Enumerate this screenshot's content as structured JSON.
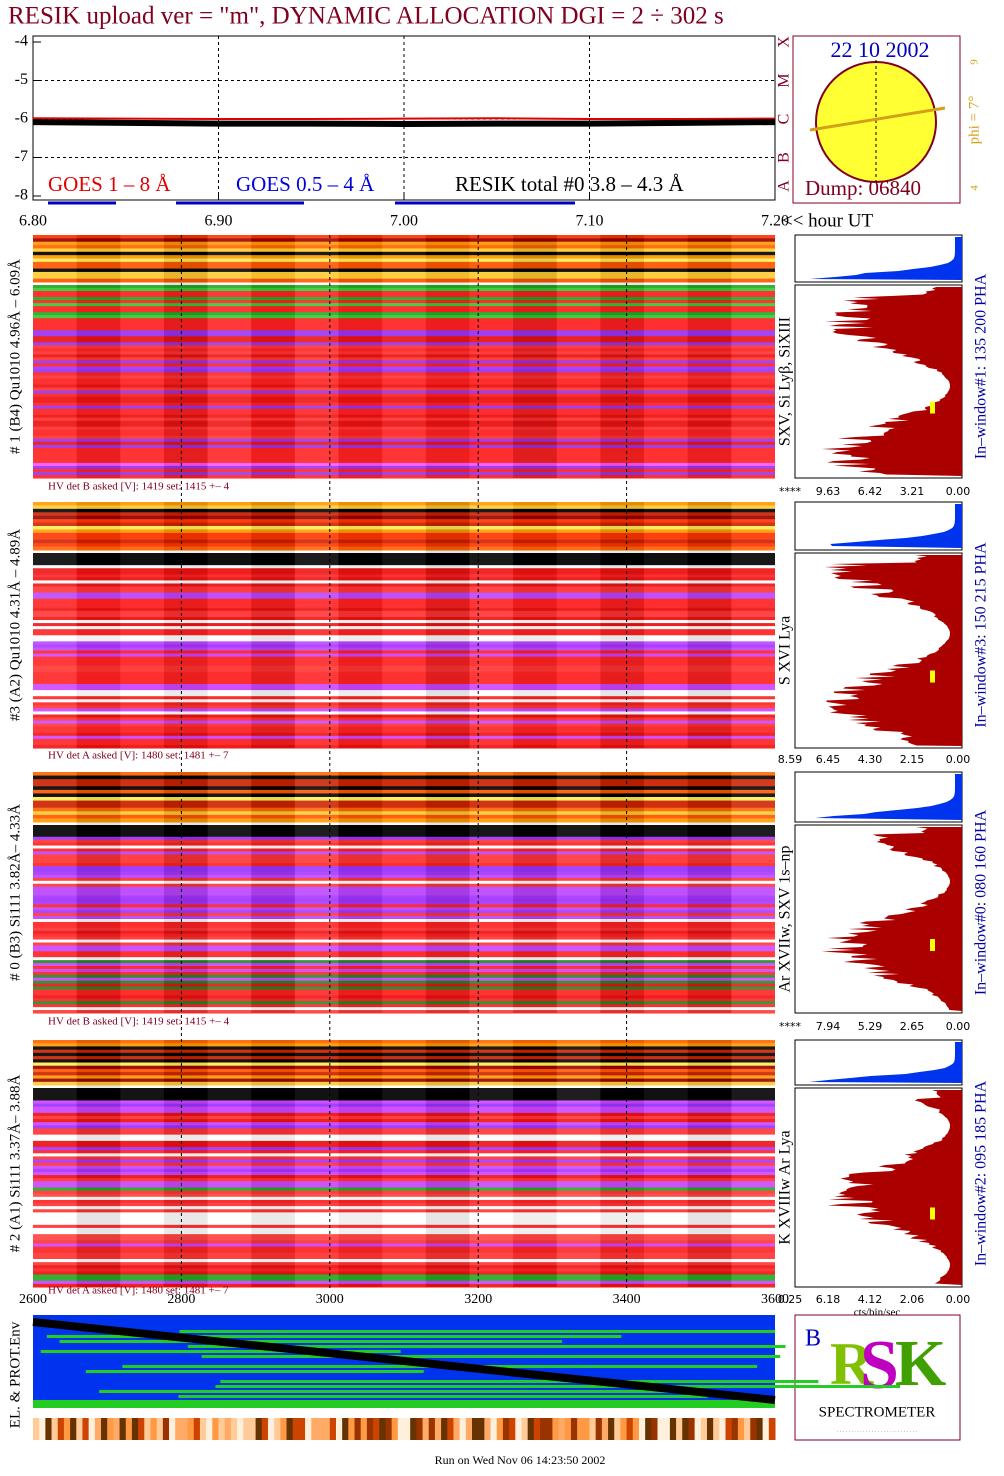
{
  "title": "RESIK upload ver = \"m\", DYNAMIC ALLOCATION  DGI =   2 ÷ 302 s",
  "goes_chart": {
    "type": "line",
    "x": [
      6.8,
      6.85,
      6.9,
      6.95,
      7.0,
      7.05,
      7.1,
      7.15,
      7.2
    ],
    "series": [
      {
        "name": "GOES 1 – 8 Å",
        "color": "#e00000",
        "values": [
          -5.98,
          -5.99,
          -6.0,
          -6.0,
          -5.99,
          -5.98,
          -6.0,
          -6.0,
          -5.99
        ]
      },
      {
        "name": "GOES 0.5 – 4 Å",
        "color": "#0000e0",
        "values": [
          null,
          null,
          null,
          null,
          null,
          null,
          null,
          null,
          null
        ]
      },
      {
        "name": "RESIK total #0  3.8 – 4.3 Å",
        "color": "#000000",
        "values": [
          -6.08,
          -6.1,
          -6.12,
          -6.12,
          -6.13,
          -6.12,
          -6.12,
          -6.1,
          -6.08
        ]
      }
    ],
    "xlim": [
      6.8,
      7.2
    ],
    "xticks": [
      {
        "value": 6.8,
        "label": "6.80"
      },
      {
        "value": 6.9,
        "label": "6.90"
      },
      {
        "value": 7.0,
        "label": "7.00"
      },
      {
        "value": 7.1,
        "label": "7.10"
      },
      {
        "value": 7.2,
        "label": "7.20"
      }
    ],
    "x_label": "<< hour UT",
    "ylim": [
      -8,
      -4
    ],
    "yticks": [
      -4,
      -5,
      -6,
      -7,
      -8
    ],
    "class_labels": [
      "A",
      "B",
      "C",
      "M",
      "X"
    ],
    "grid": true
  },
  "sun": {
    "date": "22 10 2002",
    "dump": "Dump: 06840",
    "phi_label": "phi =  7°",
    "scale_top": "9",
    "scale_bottom": "4"
  },
  "time_axis": {
    "xlim": [
      2600,
      3600
    ],
    "xticks": [
      2600,
      2800,
      3000,
      3200,
      3400,
      3600
    ]
  },
  "panels": [
    {
      "left_label": "# 1 (B4) Qu1010 4.96Å – 6.09Å",
      "right_label": "SXV, Si Lyβ, SiXIII",
      "window_label": "In–window#1:  135 200 PHA",
      "hv_text": "HV det B asked [V]:  1419 set:  1415  +–    4",
      "hist_ticks": [
        "****",
        "9.63",
        "6.42",
        "3.21",
        "0.00"
      ]
    },
    {
      "left_label": "#3 (A2) Qu1010  4.31Å – 4.89Å",
      "right_label": "S XVI Lya",
      "window_label": "In–window#3:  150 215 PHA",
      "hv_text": "HV det A asked [V]:  1480 set:  1481  +–    7",
      "hist_ticks": [
        "8.59",
        "6.45",
        "4.30",
        "2.15",
        "0.00"
      ]
    },
    {
      "left_label": "# 0 (B3) Si111  3.82Å– 4.33Å",
      "right_label": "Ar XVIIw,  SXV 1s–np",
      "window_label": "In–window#0:  080 160 PHA",
      "hv_text": "HV det B asked [V]:  1419 set:  1415  +–    4",
      "hist_ticks": [
        "****",
        "7.94",
        "5.29",
        "2.65",
        "0.00"
      ]
    },
    {
      "left_label": "# 2 (A1) Si111  3.37Å– 3.88Å",
      "right_label": "K XVIIIw  Ar Lya",
      "window_label": "In–window#2:  095 185 PHA",
      "hv_text": "HV det A asked [V]:  1480 set:  1481  +–    7",
      "hist_ticks": [
        "0.25",
        "6.18",
        "4.12",
        "2.06",
        "0.00"
      ]
    }
  ],
  "hist_units": "cts/bin/sec",
  "env_label": "EL. & PROT.Env",
  "logo_text": "SPECTROMETER",
  "footer": "Run on Wed Nov 06 14:23:50 2002"
}
